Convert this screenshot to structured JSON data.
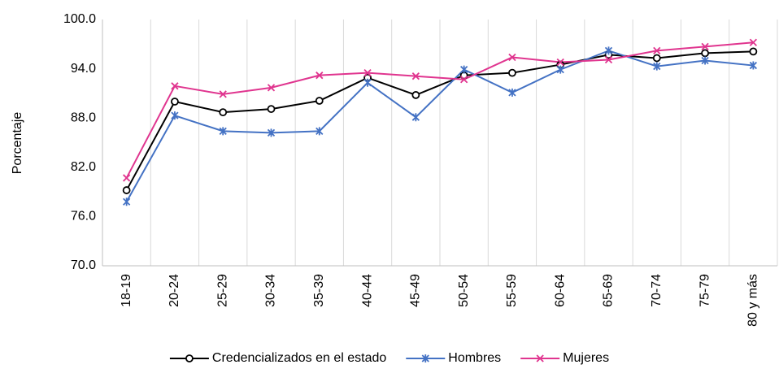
{
  "chart_data": {
    "type": "line",
    "y_label": "Porcentaje",
    "categories": [
      "18-19",
      "20-24",
      "25-29",
      "30-34",
      "35-39",
      "40-44",
      "45-49",
      "50-54",
      "55-59",
      "60-64",
      "65-69",
      "70-74",
      "75-79",
      "80 y más"
    ],
    "series": [
      {
        "name": "Credencializados en el estado",
        "color": "#000000",
        "marker": "circle",
        "values": [
          79.2,
          90.0,
          88.7,
          89.1,
          90.1,
          92.9,
          90.8,
          93.2,
          93.5,
          94.5,
          95.7,
          95.3,
          95.9,
          96.1
        ]
      },
      {
        "name": "Hombres",
        "color": "#4472c4",
        "marker": "asterisk",
        "values": [
          77.8,
          88.3,
          86.4,
          86.2,
          86.4,
          92.3,
          88.1,
          93.9,
          91.1,
          93.9,
          96.2,
          94.3,
          95.0,
          94.4
        ]
      },
      {
        "name": "Mujeres",
        "color": "#e0358f",
        "marker": "x",
        "values": [
          80.7,
          91.9,
          90.9,
          91.7,
          93.2,
          93.5,
          93.1,
          92.7,
          95.4,
          94.8,
          95.1,
          96.2,
          96.7,
          97.2
        ]
      }
    ],
    "ylim": [
      70,
      100
    ],
    "yticks": [
      {
        "value": 70,
        "label": "70.0"
      },
      {
        "value": 76,
        "label": "76.0"
      },
      {
        "value": 82,
        "label": "82.0"
      },
      {
        "value": 88,
        "label": "88.0"
      },
      {
        "value": 94,
        "label": "94.0"
      },
      {
        "value": 100,
        "label": "100.0"
      }
    ],
    "grid": "x",
    "legend": "bottom"
  }
}
